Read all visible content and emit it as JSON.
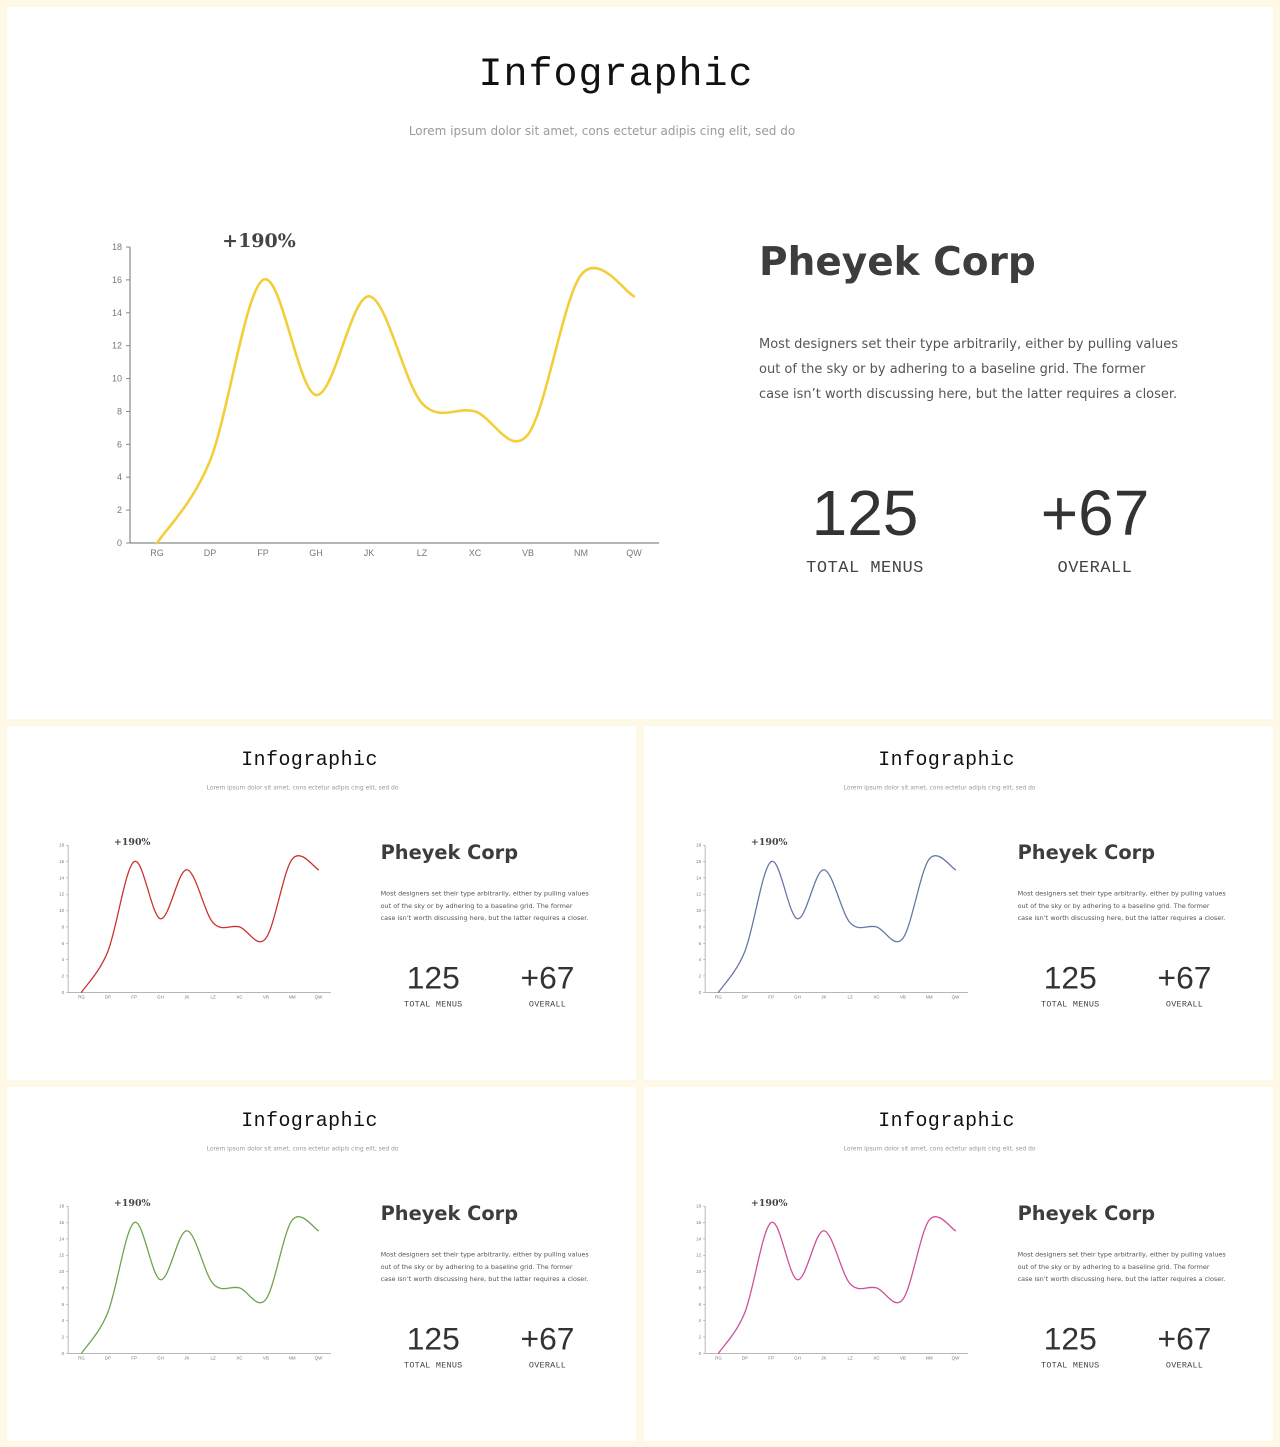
{
  "slides": [
    {
      "id": "main",
      "color": "#f2cf3a"
    },
    {
      "id": "red",
      "color": "#c9322f"
    },
    {
      "id": "blue",
      "color": "#6577a4"
    },
    {
      "id": "green",
      "color": "#6ea24f"
    },
    {
      "id": "pink",
      "color": "#cc4f98"
    }
  ],
  "content": {
    "title": "Infographic",
    "subtitle": "Lorem ipsum  dolor sit amet, cons ectetur adipis cing elit, sed do",
    "company": "Pheyek Corp",
    "description": "Most designers set their type arbitrarily, either by pulling values out of the sky or by adhering to a baseline grid. The former case isn’t worth discussing here, but the latter requires a closer.",
    "stats": [
      {
        "value": "125",
        "label": "TOTAL MENUS"
      },
      {
        "value": "+67",
        "label": "OVERALL"
      }
    ]
  },
  "chart_data": {
    "type": "line",
    "categories": [
      "RG",
      "DP",
      "FP",
      "GH",
      "JK",
      "LZ",
      "XC",
      "VB",
      "NM",
      "QW"
    ],
    "values": [
      0,
      5,
      16,
      9,
      15,
      8.5,
      8,
      6.6,
      16.3,
      15
    ],
    "yticks": [
      0,
      2,
      4,
      6,
      8,
      10,
      12,
      14,
      16,
      18
    ],
    "ylim": [
      0,
      18
    ],
    "annotation": "+190%",
    "smooth": true,
    "grid": false
  }
}
